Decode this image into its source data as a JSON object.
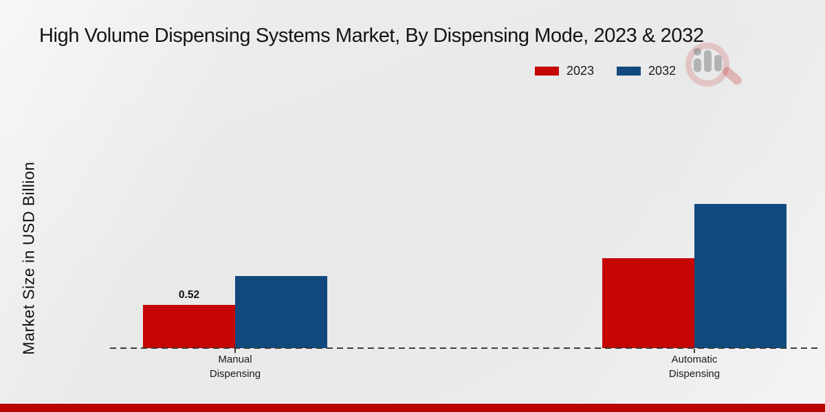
{
  "chart_data": {
    "type": "bar",
    "title": "High Volume Dispensing Systems Market, By Dispensing Mode, 2023 & 2032",
    "ylabel": "Market Size in USD Billion",
    "categories": [
      "Manual Dispensing",
      "Automatic Dispensing"
    ],
    "series": [
      {
        "name": "2023",
        "color": "#c50504",
        "values": [
          0.52,
          1.08
        ],
        "value_labels": [
          "0.52",
          ""
        ]
      },
      {
        "name": "2032",
        "color": "#11497e",
        "values": [
          0.87,
          1.73
        ],
        "value_labels": [
          "",
          ""
        ]
      }
    ],
    "grid": false,
    "legend_position": "top-right",
    "baseline_style": "dashed",
    "y_tick_labels_visible": false
  },
  "branding": {
    "watermark": "magnifier-bar-chart-logo",
    "footer_strip_color": "#b90400"
  },
  "colors": {
    "bar_2023": "#c50504",
    "bar_2032": "#11497e",
    "background": "#eaebeb",
    "baseline": "#3b3b3b"
  }
}
